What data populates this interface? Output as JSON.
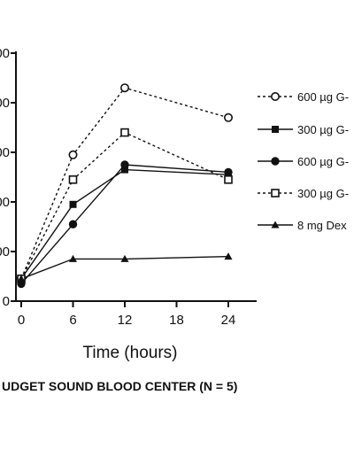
{
  "chart_data": {
    "type": "line",
    "x": [
      0,
      6,
      12,
      24
    ],
    "xlabel": "Time (hours)",
    "xticks": [
      0,
      6,
      12,
      18,
      24
    ],
    "xlim": [
      0,
      26
    ],
    "ylim": [
      0,
      5
    ],
    "yticks": [
      0,
      1,
      2,
      3,
      4,
      5
    ],
    "ytick_labels": [
      "0",
      "00",
      "00",
      "00",
      "00",
      "00"
    ],
    "legend_position": "right",
    "series": [
      {
        "name": "600 µg G-",
        "marker": "circle-open",
        "dash": "dashed",
        "values": [
          0.45,
          2.95,
          4.3,
          3.7
        ]
      },
      {
        "name": "300 µg G-",
        "marker": "square-filled",
        "dash": "solid",
        "values": [
          0.45,
          1.95,
          2.65,
          2.55
        ]
      },
      {
        "name": "600 µg G-",
        "marker": "circle-filled",
        "dash": "solid",
        "values": [
          0.35,
          1.55,
          2.75,
          2.6
        ]
      },
      {
        "name": "300 µg G-",
        "marker": "square-open",
        "dash": "dashed",
        "values": [
          0.45,
          2.45,
          3.4,
          2.45
        ]
      },
      {
        "name": "8 mg Dex",
        "marker": "triangle-filled",
        "dash": "solid",
        "values": [
          0.45,
          0.85,
          0.85,
          0.9
        ]
      }
    ],
    "footer": "UDGET SOUND BLOOD CENTER (N = 5)"
  }
}
